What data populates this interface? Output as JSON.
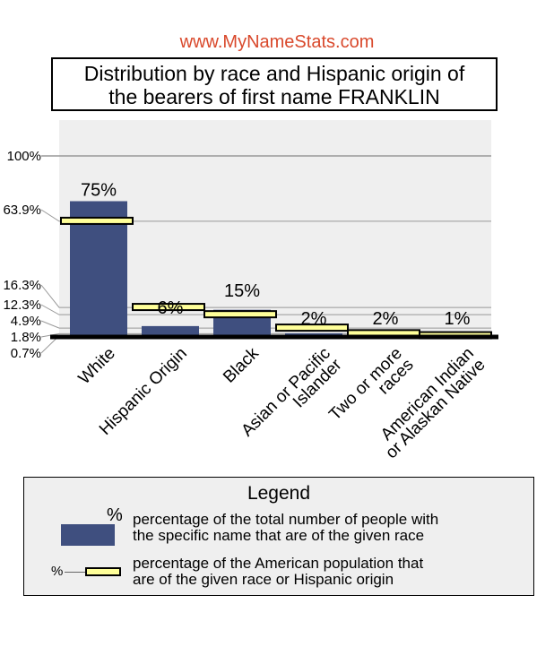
{
  "site": "www.MyNameStats.com",
  "title_lines": [
    "Distribution by race and Hispanic origin of",
    "the bearers of first name FRANKLIN"
  ],
  "legend": {
    "title": "Legend",
    "pct_symbol": "%",
    "bar_text_lines": [
      "percentage of the total number of people with",
      "the specific name that are of the given race"
    ],
    "marker_text_lines": [
      "percentage of the American population that",
      "are of the given race or Hispanic origin"
    ],
    "marker_pct_symbol": "%"
  },
  "chart_data": {
    "type": "bar",
    "categories": [
      [
        "White"
      ],
      [
        "Hispanic Origin"
      ],
      [
        "Black"
      ],
      [
        "Asian or Pacific",
        "Islander"
      ],
      [
        "Two or more",
        "races"
      ],
      [
        "American Indian",
        "or Alaskan Native"
      ]
    ],
    "series": [
      {
        "values": [
          75,
          6,
          15,
          2,
          2,
          1
        ],
        "labels": [
          "75%",
          "6%",
          "15%",
          "2%",
          "2%",
          "1%"
        ]
      },
      {
        "values": [
          63.9,
          16.3,
          12.3,
          4.9,
          1.8,
          0.7
        ]
      }
    ],
    "y_tick_labels": [
      "100%",
      "63.9%",
      "16.3%",
      "12.3%",
      "4.9%",
      "1.8%",
      "0.7%"
    ],
    "y_tick_values": [
      100,
      63.9,
      16.3,
      12.3,
      4.9,
      1.8,
      0.7
    ],
    "ylim": [
      0,
      100
    ],
    "colors": {
      "bar": "#3f4f7f",
      "marker": "#ffff99",
      "plot_bg": "#efefef",
      "site": "#d9492c"
    }
  }
}
